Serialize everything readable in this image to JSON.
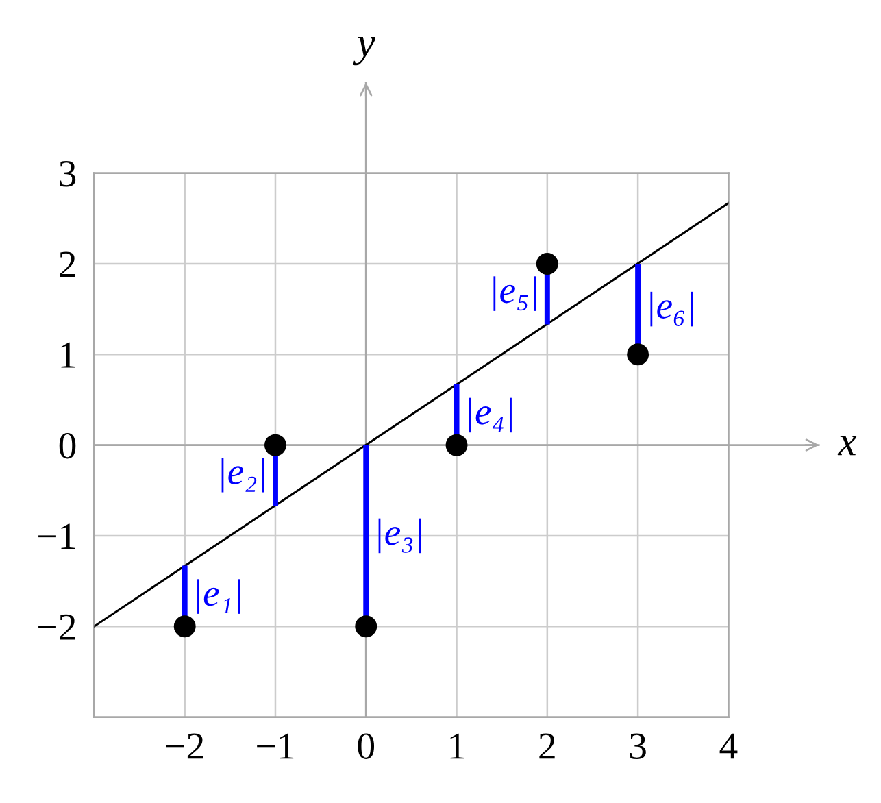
{
  "chart_data": {
    "type": "scatter",
    "xlabel": "x",
    "ylabel": "y",
    "xlim": [
      -3,
      4
    ],
    "ylim": [
      -3,
      3
    ],
    "xticks": [
      -2,
      -1,
      0,
      1,
      2,
      3,
      4
    ],
    "yticks": [
      -2,
      -1,
      0,
      1,
      2,
      3
    ],
    "grid": true,
    "series": [
      {
        "type": "line",
        "color": "#000000",
        "x": [
          -3,
          4
        ],
        "values": [
          -2,
          2.67
        ]
      },
      {
        "type": "bar",
        "color": "#0000ff",
        "x": [
          -2,
          -1,
          0,
          1,
          2,
          3
        ],
        "base": [
          -2,
          0,
          -2,
          0,
          2,
          1
        ],
        "values": [
          0.67,
          -0.67,
          2,
          0.67,
          -0.67,
          1
        ]
      },
      {
        "color": "#000000",
        "marker": "circle",
        "x": [
          -2,
          -1,
          0,
          1,
          2,
          3
        ],
        "values": [
          -2,
          0,
          -2,
          0,
          2,
          1
        ]
      }
    ],
    "annotations": [
      {
        "text": "|e₁|",
        "x": -2,
        "y": -1.67
      },
      {
        "text": "|e₂|",
        "x": -1,
        "y": -0.33
      },
      {
        "text": "|e₃|",
        "x": 0,
        "y": -1
      },
      {
        "text": "|e₄|",
        "x": 1,
        "y": 0.33
      },
      {
        "text": "|e₅|",
        "x": 2,
        "y": 1.67
      },
      {
        "text": "|e₆|",
        "x": 3,
        "y": 1.5
      }
    ]
  }
}
